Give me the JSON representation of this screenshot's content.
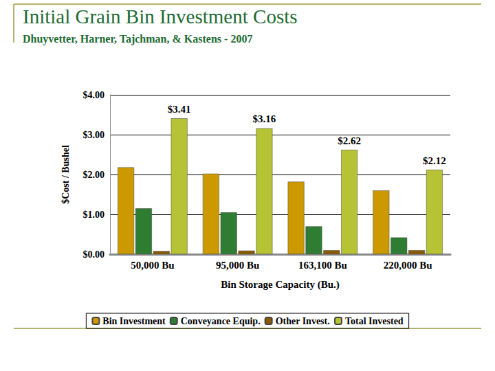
{
  "chart_data": {
    "type": "bar",
    "title": "Initial Grain Bin Investment Costs",
    "subtitle": "Dhuyvetter, Harner, Tajchman, & Kastens - 2007",
    "x_label": "Bin Storage Capacity (Bu.)",
    "y_label": "$Cost / Bushel",
    "categories": [
      "50,000 Bu",
      "95,000 Bu",
      "163,100 Bu",
      "220,000 Bu"
    ],
    "series": [
      {
        "name": "Bin Investment",
        "color": "#CC9900",
        "values": [
          2.18,
          2.02,
          1.82,
          1.6
        ]
      },
      {
        "name": "Conveyance Equip.",
        "color": "#2E7D32",
        "values": [
          1.15,
          1.05,
          0.7,
          0.42
        ]
      },
      {
        "name": "Other Invest.",
        "color": "#8B5A00",
        "values": [
          0.08,
          0.09,
          0.1,
          0.1
        ]
      },
      {
        "name": "Total Invested",
        "color": "#B5C334",
        "values": [
          3.41,
          3.16,
          2.62,
          2.12
        ],
        "data_labels": true,
        "value_labels": [
          "$3.41",
          "$3.16",
          "$2.62",
          "$2.12"
        ]
      }
    ],
    "ylim": [
      0,
      4
    ],
    "yticks": [
      {
        "value": 0,
        "label": "$0.00"
      },
      {
        "value": 1,
        "label": "$1.00"
      },
      {
        "value": 2,
        "label": "$2.00"
      },
      {
        "value": 3,
        "label": "$3.00"
      },
      {
        "value": 4,
        "label": "$4.00"
      }
    ],
    "grid": true,
    "legend": "bottom"
  }
}
